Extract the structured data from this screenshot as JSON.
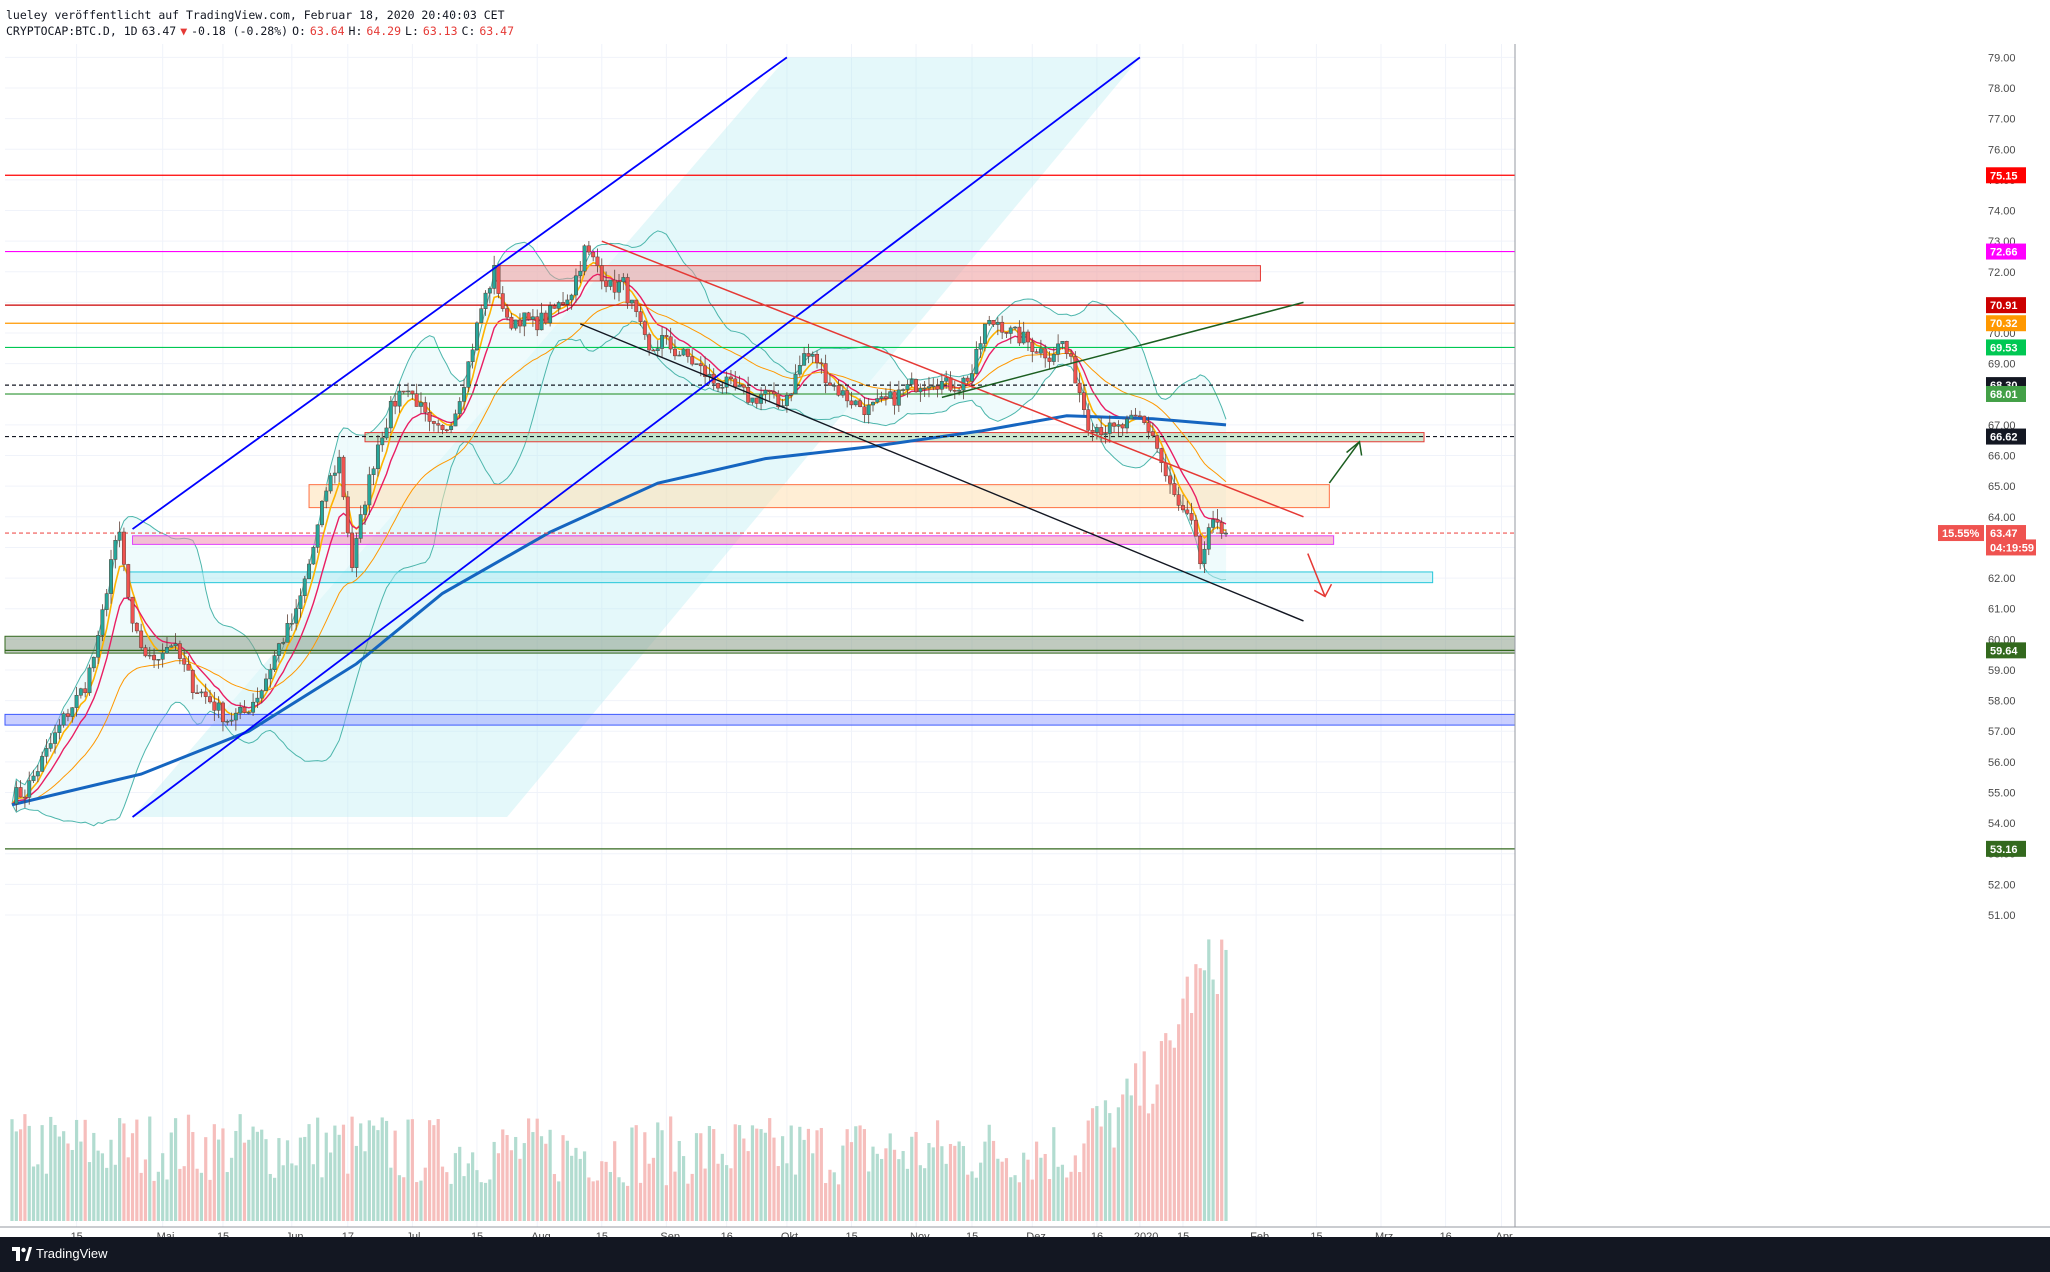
{
  "header": {
    "publisher": "lueley veröffentlicht auf TradingView.com, Februar 18, 2020 20:40:03 CET",
    "symbol": "CRYPTOCAP:BTC.D, 1D",
    "last": "63.47",
    "arrow": "▼",
    "change": "-0.18 (-0.28%)",
    "o_label": "O:",
    "o": "63.64",
    "h_label": "H:",
    "h": "64.29",
    "l_label": "L:",
    "l": "63.13",
    "c_label": "C:",
    "c": "63.47"
  },
  "footer": {
    "brand": "TradingView"
  },
  "colors": {
    "up": "#26a69a",
    "down": "#ef5350",
    "channel": "#0000ff",
    "ma200": "#1565c0"
  },
  "chart_data": {
    "type": "line",
    "title": "CRYPTOCAP:BTC.D, 1D",
    "xlabel": "",
    "ylabel": "",
    "ylim": [
      50.6,
      80.0
    ],
    "y_ticks": [
      "51.00",
      "52.00",
      "53.00",
      "54.00",
      "55.00",
      "56.00",
      "57.00",
      "58.00",
      "59.00",
      "60.00",
      "61.00",
      "62.00",
      "63.00",
      "64.00",
      "65.00",
      "66.00",
      "67.00",
      "68.00",
      "69.00",
      "70.00",
      "71.00",
      "72.00",
      "73.00",
      "74.00",
      "75.00",
      "76.00",
      "77.00",
      "78.00",
      "79.00"
    ],
    "x_ticks": [
      "15",
      "Mai",
      "15",
      "Jun",
      "17",
      "Jul",
      "15",
      "Aug",
      "15",
      "Sep",
      "16",
      "Okt",
      "15",
      "Nov",
      "15",
      "Dez",
      "16",
      "2020",
      "15",
      "Feb",
      "15",
      "Mrz",
      "16",
      "Apr"
    ],
    "price_points": [
      [
        0,
        54.9
      ],
      [
        3,
        55.0
      ],
      [
        8,
        56.3
      ],
      [
        12,
        57.4
      ],
      [
        17,
        58.5
      ],
      [
        20,
        59.9
      ],
      [
        23,
        62.6
      ],
      [
        25,
        63.4
      ],
      [
        28,
        60.3
      ],
      [
        32,
        59.3
      ],
      [
        37,
        59.9
      ],
      [
        42,
        58.5
      ],
      [
        46,
        58.0
      ],
      [
        50,
        57.4
      ],
      [
        54,
        57.6
      ],
      [
        58,
        58.4
      ],
      [
        62,
        59.8
      ],
      [
        66,
        60.8
      ],
      [
        70,
        63.0
      ],
      [
        73,
        64.9
      ],
      [
        76,
        65.9
      ],
      [
        79,
        62.4
      ],
      [
        82,
        64.6
      ],
      [
        85,
        66.4
      ],
      [
        88,
        67.5
      ],
      [
        91,
        68.3
      ],
      [
        94,
        67.8
      ],
      [
        97,
        66.9
      ],
      [
        100,
        66.7
      ],
      [
        103,
        67.5
      ],
      [
        106,
        69.0
      ],
      [
        109,
        70.8
      ],
      [
        112,
        72.0
      ],
      [
        115,
        70.3
      ],
      [
        118,
        70.5
      ],
      [
        121,
        70.3
      ],
      [
        124,
        70.5
      ],
      [
        127,
        70.9
      ],
      [
        130,
        71.4
      ],
      [
        133,
        72.7
      ],
      [
        136,
        72.2
      ],
      [
        139,
        71.5
      ],
      [
        142,
        71.6
      ],
      [
        145,
        70.5
      ],
      [
        148,
        69.3
      ],
      [
        151,
        69.8
      ],
      [
        154,
        69.4
      ],
      [
        157,
        69.2
      ],
      [
        160,
        68.8
      ],
      [
        163,
        68.4
      ],
      [
        166,
        68.3
      ],
      [
        169,
        68.1
      ],
      [
        172,
        67.8
      ],
      [
        175,
        68.1
      ],
      [
        178,
        67.6
      ],
      [
        181,
        68.2
      ],
      [
        184,
        69.3
      ],
      [
        187,
        69.1
      ],
      [
        190,
        68.4
      ],
      [
        193,
        68.0
      ],
      [
        196,
        67.7
      ],
      [
        199,
        67.5
      ],
      [
        202,
        67.7
      ],
      [
        205,
        67.9
      ],
      [
        208,
        68.2
      ],
      [
        211,
        68.4
      ],
      [
        214,
        68.5
      ],
      [
        217,
        68.3
      ],
      [
        220,
        68.3
      ],
      [
        223,
        68.7
      ],
      [
        226,
        70.2
      ],
      [
        229,
        70.4
      ],
      [
        232,
        70.0
      ],
      [
        235,
        69.8
      ],
      [
        238,
        69.5
      ],
      [
        241,
        69.3
      ],
      [
        244,
        69.7
      ],
      [
        247,
        68.6
      ],
      [
        250,
        67.1
      ],
      [
        253,
        66.9
      ],
      [
        256,
        66.8
      ],
      [
        259,
        67.0
      ],
      [
        262,
        67.2
      ],
      [
        265,
        66.7
      ],
      [
        268,
        65.3
      ],
      [
        271,
        64.3
      ],
      [
        274,
        63.7
      ],
      [
        276,
        62.5
      ],
      [
        278,
        63.4
      ],
      [
        280,
        63.9
      ],
      [
        282,
        63.47
      ]
    ],
    "ma200_points": [
      [
        0,
        54.6
      ],
      [
        30,
        55.6
      ],
      [
        55,
        57.0
      ],
      [
        80,
        59.2
      ],
      [
        100,
        61.5
      ],
      [
        125,
        63.5
      ],
      [
        150,
        65.1
      ],
      [
        175,
        65.9
      ],
      [
        200,
        66.3
      ],
      [
        225,
        66.8
      ],
      [
        245,
        67.3
      ],
      [
        265,
        67.2
      ],
      [
        282,
        67.0
      ]
    ],
    "price_levels": [
      {
        "value": 75.15,
        "color": "#ff0000"
      },
      {
        "value": 72.66,
        "color": "#ff00ff"
      },
      {
        "value": 70.91,
        "color": "#cc0000"
      },
      {
        "value": 70.32,
        "color": "#ff9800"
      },
      {
        "value": 69.53,
        "color": "#00c853"
      },
      {
        "value": 68.3,
        "color": "#131722"
      },
      {
        "value": 68.01,
        "color": "#43a047"
      },
      {
        "value": 66.62,
        "color": "#131722"
      },
      {
        "value": 63.47,
        "color": "#ef5350"
      },
      {
        "value": 59.64,
        "color": "#33691e"
      },
      {
        "value": 53.16,
        "color": "#33691e"
      }
    ],
    "price_labels": [
      "75.15",
      "72.66",
      "70.91",
      "70.32",
      "69.53",
      "68.30",
      "68.01",
      "66.62",
      "63.47",
      "59.64",
      "53.16"
    ],
    "last_change_label": "15.55%",
    "countdown_label": "04:19:59"
  }
}
